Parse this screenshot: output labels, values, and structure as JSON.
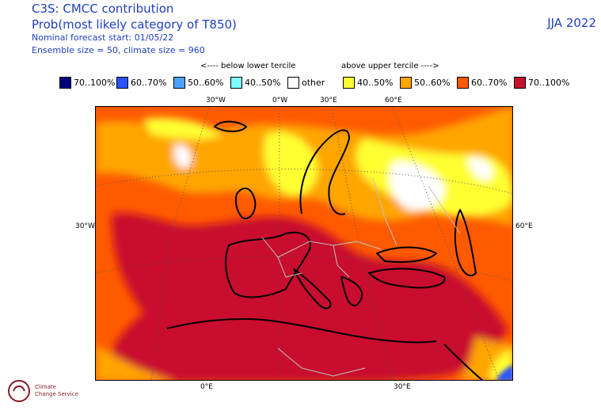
{
  "header": {
    "line1": "C3S: CMCC contribution",
    "line2": "Prob(most likely category of T850)",
    "line3": "Nominal forecast start: 01/05/22",
    "line4": "Ensemble size = 50, climate size = 960",
    "season": "JJA 2022"
  },
  "legend": {
    "below_label": "<---- below lower tercile",
    "above_label": "above upper tercile ---->",
    "items": [
      {
        "label": "70..100%",
        "color": "#00007f"
      },
      {
        "label": "60..70%",
        "color": "#2a52ff"
      },
      {
        "label": "50..60%",
        "color": "#4aa3ff"
      },
      {
        "label": "40..50%",
        "color": "#7fffff"
      },
      {
        "label": "other",
        "color": "#ffffff"
      },
      {
        "label": "40..50%",
        "color": "#ffff33"
      },
      {
        "label": "50..60%",
        "color": "#ffa500"
      },
      {
        "label": "60..70%",
        "color": "#ff5a00"
      },
      {
        "label": "70..100%",
        "color": "#c8102e"
      }
    ]
  },
  "map": {
    "top_ticks": [
      "30°W",
      "0°W",
      "30°E",
      "60°E"
    ],
    "left_tick": "30°W",
    "right_tick": "60°E",
    "bottom_ticks": [
      "0°E",
      "30°E"
    ]
  },
  "logo": {
    "text1": "Climate",
    "text2": "Change Service"
  }
}
